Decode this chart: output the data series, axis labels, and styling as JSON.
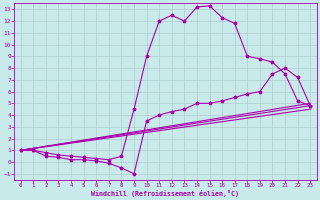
{
  "background_color": "#c8eaea",
  "grid_color": "#b0cccc",
  "line_color": "#aa00aa",
  "xlabel": "Windchill (Refroidissement éolien,°C)",
  "xlim": [
    -0.5,
    23.5
  ],
  "ylim": [
    -1.5,
    13.5
  ],
  "xticks": [
    0,
    1,
    2,
    3,
    4,
    5,
    6,
    7,
    8,
    9,
    10,
    11,
    12,
    13,
    14,
    15,
    16,
    17,
    18,
    19,
    20,
    21,
    22,
    23
  ],
  "yticks": [
    -1,
    0,
    1,
    2,
    3,
    4,
    5,
    6,
    7,
    8,
    9,
    10,
    11,
    12,
    13
  ],
  "curve_peaked_x": [
    0,
    1,
    2,
    3,
    4,
    5,
    6,
    7,
    8,
    9,
    10,
    11,
    12,
    13,
    14,
    15,
    16,
    17,
    18,
    19,
    20,
    21,
    22,
    23
  ],
  "curve_peaked_y": [
    1,
    1,
    0.8,
    0.6,
    0.5,
    0.4,
    0.3,
    0.2,
    0.5,
    4.5,
    9.0,
    12.0,
    12.5,
    12.0,
    13.2,
    13.3,
    12.3,
    11.8,
    9.0,
    8.8,
    8.5,
    7.5,
    5.2,
    4.8
  ],
  "curve_dip_x": [
    0,
    1,
    2,
    3,
    4,
    5,
    6,
    7,
    8,
    9,
    10,
    11,
    12,
    13,
    14,
    15,
    16,
    17,
    18,
    19,
    20,
    21,
    22,
    23
  ],
  "curve_dip_y": [
    1,
    1,
    0.5,
    0.4,
    0.2,
    0.2,
    0.1,
    -0.1,
    -0.5,
    -1.0,
    3.5,
    4.0,
    4.3,
    4.5,
    5.0,
    5.0,
    5.2,
    5.5,
    5.8,
    6.0,
    7.5,
    8.0,
    7.2,
    4.8
  ],
  "curve_line1_x": [
    0,
    23
  ],
  "curve_line1_y": [
    1.0,
    5.0
  ],
  "curve_line2_x": [
    0,
    23
  ],
  "curve_line2_y": [
    1.0,
    4.5
  ],
  "curve_line3_x": [
    0,
    23
  ],
  "curve_line3_y": [
    1.0,
    4.8
  ]
}
